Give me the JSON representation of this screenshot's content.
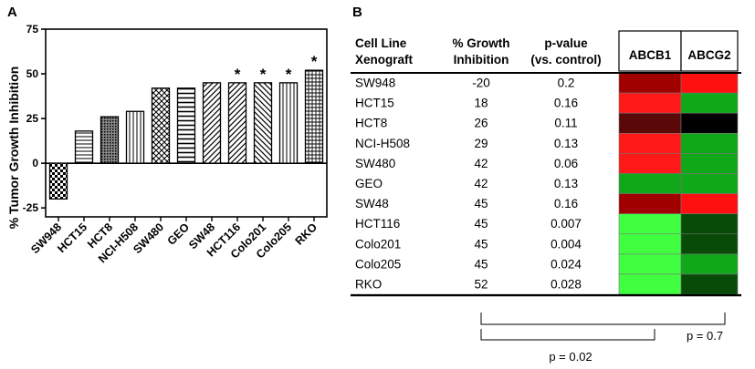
{
  "panels": {
    "a": "A",
    "b": "B"
  },
  "chart_data": {
    "type": "bar",
    "title": "",
    "xlabel": "",
    "ylabel": "% Tumor Growth Inhibition",
    "ylim": [
      -30,
      75
    ],
    "yticks": [
      -25,
      0,
      25,
      50,
      75
    ],
    "categories": [
      "SW948",
      "HCT15",
      "HCT8",
      "NCI-H508",
      "SW480",
      "GEO",
      "SW48",
      "HCT116",
      "Colo201",
      "Colo205",
      "RKO"
    ],
    "values": [
      -20,
      18,
      26,
      29,
      42,
      42,
      45,
      45,
      45,
      45,
      52
    ],
    "patterns": [
      "checker",
      "horizontal",
      "dots",
      "vertical",
      "crosshatch",
      "horizontal-wide",
      "diagonal",
      "diagonal",
      "diagonal-reverse",
      "vertical",
      "grid"
    ],
    "annotations": [
      "",
      "",
      "",
      "",
      "",
      "",
      "",
      "*",
      "*",
      "*",
      "*"
    ]
  },
  "table": {
    "headers": {
      "cell_line": [
        "Cell Line",
        "Xenograft"
      ],
      "growth": [
        "% Growth",
        "Inhibition"
      ],
      "pvalue": [
        "p-value",
        "(vs. control)"
      ],
      "abcb1": "ABCB1",
      "abcg2": "ABCG2"
    },
    "rows": [
      {
        "cell_line": "SW948",
        "growth": "-20",
        "pvalue": "0.2",
        "abcb1": "#a00000",
        "abcg2": "#ff1010"
      },
      {
        "cell_line": "HCT15",
        "growth": "18",
        "pvalue": "0.16",
        "abcb1": "#ff1818",
        "abcg2": "#10a818"
      },
      {
        "cell_line": "HCT8",
        "growth": "26",
        "pvalue": "0.11",
        "abcb1": "#5a0808",
        "abcg2": "#000000"
      },
      {
        "cell_line": "NCI-H508",
        "growth": "29",
        "pvalue": "0.13",
        "abcb1": "#ff1818",
        "abcg2": "#10a818"
      },
      {
        "cell_line": "SW480",
        "growth": "42",
        "pvalue": "0.06",
        "abcb1": "#ff1818",
        "abcg2": "#10a818"
      },
      {
        "cell_line": "GEO",
        "growth": "42",
        "pvalue": "0.13",
        "abcb1": "#10a818",
        "abcg2": "#10a818"
      },
      {
        "cell_line": "SW48",
        "growth": "45",
        "pvalue": "0.16",
        "abcb1": "#a00000",
        "abcg2": "#ff1010"
      },
      {
        "cell_line": "HCT116",
        "growth": "45",
        "pvalue": "0.007",
        "abcb1": "#40ff40",
        "abcg2": "#084a08"
      },
      {
        "cell_line": "Colo201",
        "growth": "45",
        "pvalue": "0.004",
        "abcb1": "#40ff40",
        "abcg2": "#084a08"
      },
      {
        "cell_line": "Colo205",
        "growth": "45",
        "pvalue": "0.024",
        "abcb1": "#40ff40",
        "abcg2": "#10a818"
      },
      {
        "cell_line": "RKO",
        "growth": "52",
        "pvalue": "0.028",
        "abcb1": "#40ff40",
        "abcg2": "#084a08"
      }
    ],
    "brackets": {
      "abcg2_p": "p = 0.7",
      "abcb1_p": "p = 0.02"
    }
  }
}
